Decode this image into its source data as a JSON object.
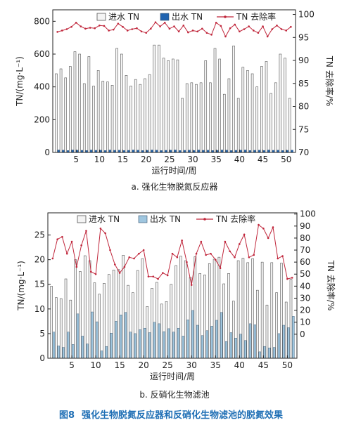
{
  "figure_caption": {
    "number": "图8",
    "text": "强化生物脱氮反应器和反硝化生物滤池的脱氮效果"
  },
  "colors": {
    "influent_fill": "#f4f4f4",
    "effluent_fill_a": "#1f63b0",
    "effluent_fill_b": "#9fc6df",
    "removal_line": "#c0263b",
    "axis": "#222222"
  },
  "chart_data": [
    {
      "type": "bar",
      "caption": "a. 强化生物脱氮反应器",
      "legend": [
        "进水 TN",
        "出水 TN",
        "TN 去除率"
      ],
      "legend_position": "top",
      "xlabel": "运行时间/周",
      "ylabel": "TN/(mg·L⁻¹)",
      "y2label": "TN 去除率/%",
      "xlim": [
        0,
        52
      ],
      "xticks": [
        5,
        10,
        15,
        20,
        25,
        30,
        35,
        40,
        45,
        50
      ],
      "ylim": [
        0,
        870
      ],
      "yticks": [
        0,
        200,
        400,
        600,
        800
      ],
      "y2lim": [
        70,
        101
      ],
      "y2ticks": [
        70,
        75,
        80,
        85,
        90,
        95,
        100
      ],
      "grid": false,
      "x": [
        1,
        2,
        3,
        4,
        5,
        6,
        7,
        8,
        9,
        10,
        11,
        12,
        13,
        14,
        15,
        16,
        17,
        18,
        19,
        20,
        21,
        22,
        23,
        24,
        25,
        26,
        27,
        28,
        29,
        30,
        31,
        32,
        33,
        34,
        35,
        36,
        37,
        38,
        39,
        40,
        41,
        42,
        43,
        44,
        45,
        46,
        47,
        48,
        49,
        50,
        51
      ],
      "series": [
        {
          "name": "进水 TN",
          "kind": "bar",
          "axis": "left",
          "values": [
            480,
            510,
            455,
            525,
            615,
            600,
            420,
            585,
            405,
            500,
            435,
            430,
            410,
            635,
            600,
            470,
            405,
            445,
            415,
            450,
            475,
            655,
            655,
            575,
            560,
            570,
            565,
            330,
            420,
            425,
            415,
            425,
            560,
            425,
            635,
            570,
            355,
            450,
            650,
            330,
            520,
            500,
            480,
            400,
            525,
            555,
            360,
            425,
            600,
            575,
            330
          ]
        },
        {
          "name": "出水 TN",
          "kind": "bar",
          "axis": "left",
          "values": [
            15,
            14,
            12,
            15,
            14,
            13,
            12,
            15,
            13,
            14,
            12,
            15,
            13,
            14,
            12,
            13,
            15,
            14,
            12,
            13,
            15,
            14,
            12,
            13,
            14,
            15,
            12,
            13,
            14,
            12,
            15,
            13,
            14,
            12,
            13,
            15,
            14,
            12,
            13,
            14,
            15,
            12,
            13,
            14,
            12,
            15,
            13,
            14,
            12,
            13,
            14
          ]
        },
        {
          "name": "TN 去除率",
          "kind": "line",
          "axis": "right",
          "values": [
            96.2,
            96.5,
            96.8,
            97.3,
            98.2,
            97.4,
            96.9,
            97.1,
            97.0,
            97.6,
            97.5,
            96.5,
            96.7,
            98.0,
            97.3,
            96.5,
            96.8,
            97.0,
            96.3,
            96.0,
            96.9,
            98.3,
            97.4,
            98.2,
            96.9,
            97.4,
            96.3,
            97.6,
            96.1,
            96.5,
            96.3,
            96.9,
            96.0,
            95.6,
            98.2,
            97.5,
            95.2,
            97.0,
            97.8,
            96.3,
            96.8,
            97.4,
            96.5,
            96.0,
            97.4,
            95.2,
            96.8,
            97.6,
            96.8,
            96.5,
            97.3
          ]
        }
      ]
    },
    {
      "type": "bar",
      "caption": "b. 反硝化生物滤池",
      "legend": [
        "进水 TN",
        "出水 TN",
        "TN 去除率"
      ],
      "legend_position": "top",
      "xlabel": "运行时间/周",
      "ylabel": "TN/(mg·L⁻¹)",
      "y2label": "TN 去除率/%",
      "xlim": [
        0,
        52
      ],
      "xticks": [
        5,
        10,
        15,
        20,
        25,
        30,
        35,
        40,
        45,
        50
      ],
      "ylim": [
        0,
        29.5
      ],
      "yticks": [
        0,
        5,
        10,
        15,
        20,
        25
      ],
      "y2lim": [
        -20,
        101
      ],
      "y2ticks": [
        0,
        10,
        20,
        30,
        40,
        50,
        60,
        70,
        80,
        90,
        100
      ],
      "grid": false,
      "x": [
        1,
        2,
        3,
        4,
        5,
        6,
        7,
        8,
        9,
        10,
        11,
        12,
        13,
        14,
        15,
        16,
        17,
        18,
        19,
        20,
        21,
        22,
        23,
        24,
        25,
        26,
        27,
        28,
        29,
        30,
        31,
        32,
        33,
        34,
        35,
        36,
        37,
        38,
        39,
        40,
        41,
        42,
        43,
        44,
        45,
        46,
        47,
        48,
        49,
        50,
        51
      ],
      "series": [
        {
          "name": "进水 TN",
          "kind": "bar",
          "axis": "left",
          "values": [
            14.6,
            12.3,
            12.1,
            16.1,
            11.8,
            20.0,
            17.6,
            20.8,
            19.8,
            15.3,
            13.0,
            15.2,
            17.0,
            17.9,
            18.0,
            20.9,
            14.8,
            13.3,
            17.8,
            20.2,
            10.5,
            14.2,
            15.4,
            11.0,
            11.5,
            15.0,
            18.8,
            20.7,
            19.8,
            16.4,
            20.6,
            17.2,
            16.9,
            19.2,
            20.1,
            20.5,
            15.1,
            17.2,
            11.6,
            19.8,
            20.3,
            19.4,
            20.2,
            13.8,
            19.5,
            10.8,
            19.4,
            13.3,
            19.3,
            11.4,
            16.0
          ]
        },
        {
          "name": "出水 TN",
          "kind": "bar",
          "axis": "left",
          "values": [
            5.3,
            2.5,
            2.2,
            5.3,
            2.8,
            9.0,
            4.5,
            2.9,
            9.4,
            7.4,
            1.5,
            2.4,
            5.1,
            7.5,
            8.8,
            9.3,
            5.3,
            5.0,
            5.8,
            6.1,
            5.2,
            7.3,
            7.0,
            5.4,
            6.0,
            5.3,
            6.1,
            4.5,
            7.8,
            9.7,
            6.7,
            4.6,
            5.6,
            6.5,
            7.7,
            9.3,
            3.4,
            5.2,
            4.1,
            4.9,
            3.6,
            7.0,
            6.8,
            1.3,
            2.4,
            2.1,
            2.2,
            5.0,
            6.7,
            6.2,
            8.5
          ]
        },
        {
          "name": "TN 去除率",
          "kind": "line",
          "axis": "right",
          "values": [
            63,
            79,
            81,
            67,
            77,
            56,
            74,
            86,
            52,
            50,
            88,
            84,
            70,
            58,
            51,
            56,
            64,
            63,
            67,
            70,
            48,
            48,
            46,
            51,
            49,
            67,
            64,
            78,
            60,
            41,
            67,
            77,
            66,
            67,
            62,
            55,
            77,
            69,
            64,
            75,
            83,
            64,
            66,
            91,
            88,
            80,
            89,
            63,
            65,
            46,
            47
          ]
        }
      ]
    }
  ]
}
